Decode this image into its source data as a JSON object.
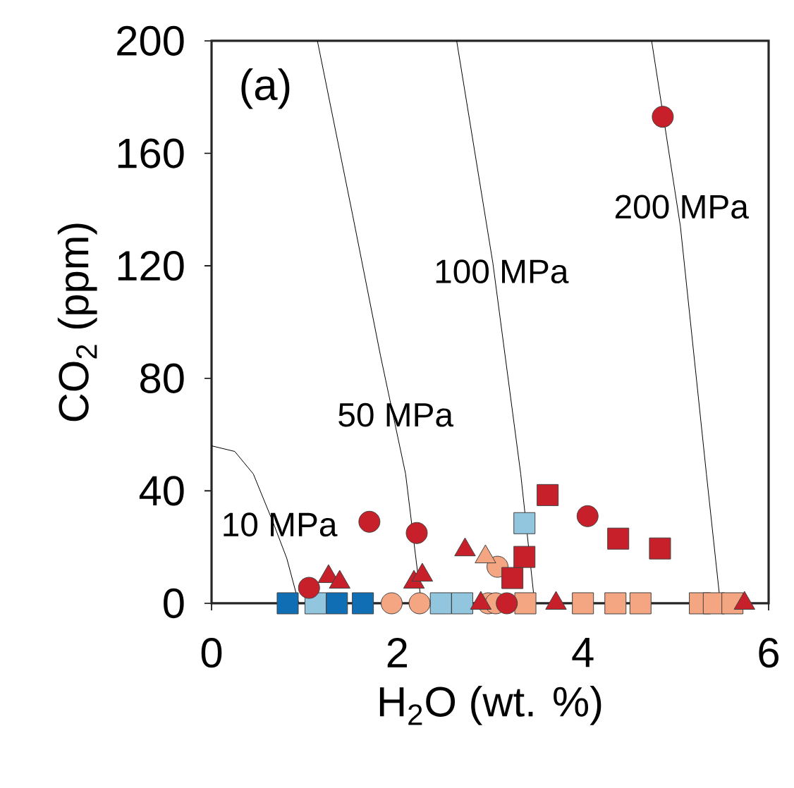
{
  "chart_data": {
    "type": "scatter",
    "xlabel": "H$_{2}$O (wt. %)",
    "ylabel": "CO$_{2}$ (ppm)",
    "xlim": [
      0,
      6
    ],
    "ylim": [
      0,
      200
    ],
    "xticks": [
      0,
      2,
      4,
      6
    ],
    "yticks": [
      0,
      40,
      80,
      120,
      160,
      200
    ],
    "annotations": [
      "(a)",
      {
        "text": "10 MPa",
        "x": 0.73,
        "y": 28
      },
      {
        "text": "50 MPa",
        "x": 1.98,
        "y": 67
      },
      {
        "text": "100 MPa",
        "x": 3.12,
        "y": 118
      },
      {
        "text": "200 MPa",
        "x": 5.06,
        "y": 141
      }
    ],
    "series": [
      {
        "type": "line",
        "color": "#000000",
        "marker": "none",
        "x": [
          0,
          0.25,
          0.45,
          0.66,
          0.81,
          0.94
        ],
        "values": [
          56,
          54,
          46,
          29,
          16,
          0
        ]
      },
      {
        "type": "line",
        "color": "#000000",
        "marker": "none",
        "x": [
          1.14,
          1.52,
          1.82,
          2.09,
          2.26
        ],
        "values": [
          200,
          138,
          88,
          46,
          0
        ]
      },
      {
        "type": "line",
        "color": "#000000",
        "marker": "none",
        "x": [
          2.64,
          3.03,
          3.33,
          3.48
        ],
        "values": [
          200,
          121,
          46,
          0
        ]
      },
      {
        "type": "line",
        "color": "#000000",
        "marker": "none",
        "x": [
          4.74,
          5.05,
          5.33,
          5.48
        ],
        "values": [
          200,
          134,
          46,
          0
        ]
      },
      {
        "color": "#0f6eb4",
        "marker": "square",
        "x": [
          0.82,
          1.35,
          1.63
        ],
        "values": [
          0,
          0,
          0
        ]
      },
      {
        "color": "#92c5de",
        "marker": "square",
        "x": [
          1.12,
          2.47,
          2.7,
          3.37
        ],
        "values": [
          0,
          0,
          0,
          28.5
        ]
      },
      {
        "color": "#f4a582",
        "marker": "circle",
        "x": [
          1.94,
          2.24,
          2.98,
          3.06,
          3.08
        ],
        "values": [
          0,
          0,
          0,
          0,
          13
        ]
      },
      {
        "color": "#f4a582",
        "marker": "triangle",
        "x": [
          2.95
        ],
        "values": [
          16.5
        ]
      },
      {
        "color": "#f4a582",
        "marker": "square",
        "x": [
          3.38,
          4.0,
          4.35,
          4.62,
          5.26,
          5.41,
          5.61
        ],
        "values": [
          0,
          0,
          0,
          0,
          0,
          0,
          0
        ]
      },
      {
        "color": "#c8202a",
        "marker": "triangle",
        "x": [
          1.26,
          1.38,
          2.18,
          2.27,
          2.73,
          2.9,
          3.71,
          5.74
        ],
        "values": [
          9.5,
          7.5,
          7.5,
          10,
          19,
          0,
          0,
          0
        ]
      },
      {
        "color": "#c8202a",
        "marker": "circle",
        "x": [
          1.05,
          1.7,
          2.21,
          3.18,
          4.05,
          4.86
        ],
        "values": [
          5.5,
          29,
          25,
          0,
          31,
          173
        ]
      },
      {
        "color": "#c8202a",
        "marker": "square",
        "x": [
          3.24,
          3.37,
          3.62,
          4.38,
          4.83
        ],
        "values": [
          9,
          16.5,
          38.5,
          23,
          19.5
        ]
      }
    ]
  }
}
